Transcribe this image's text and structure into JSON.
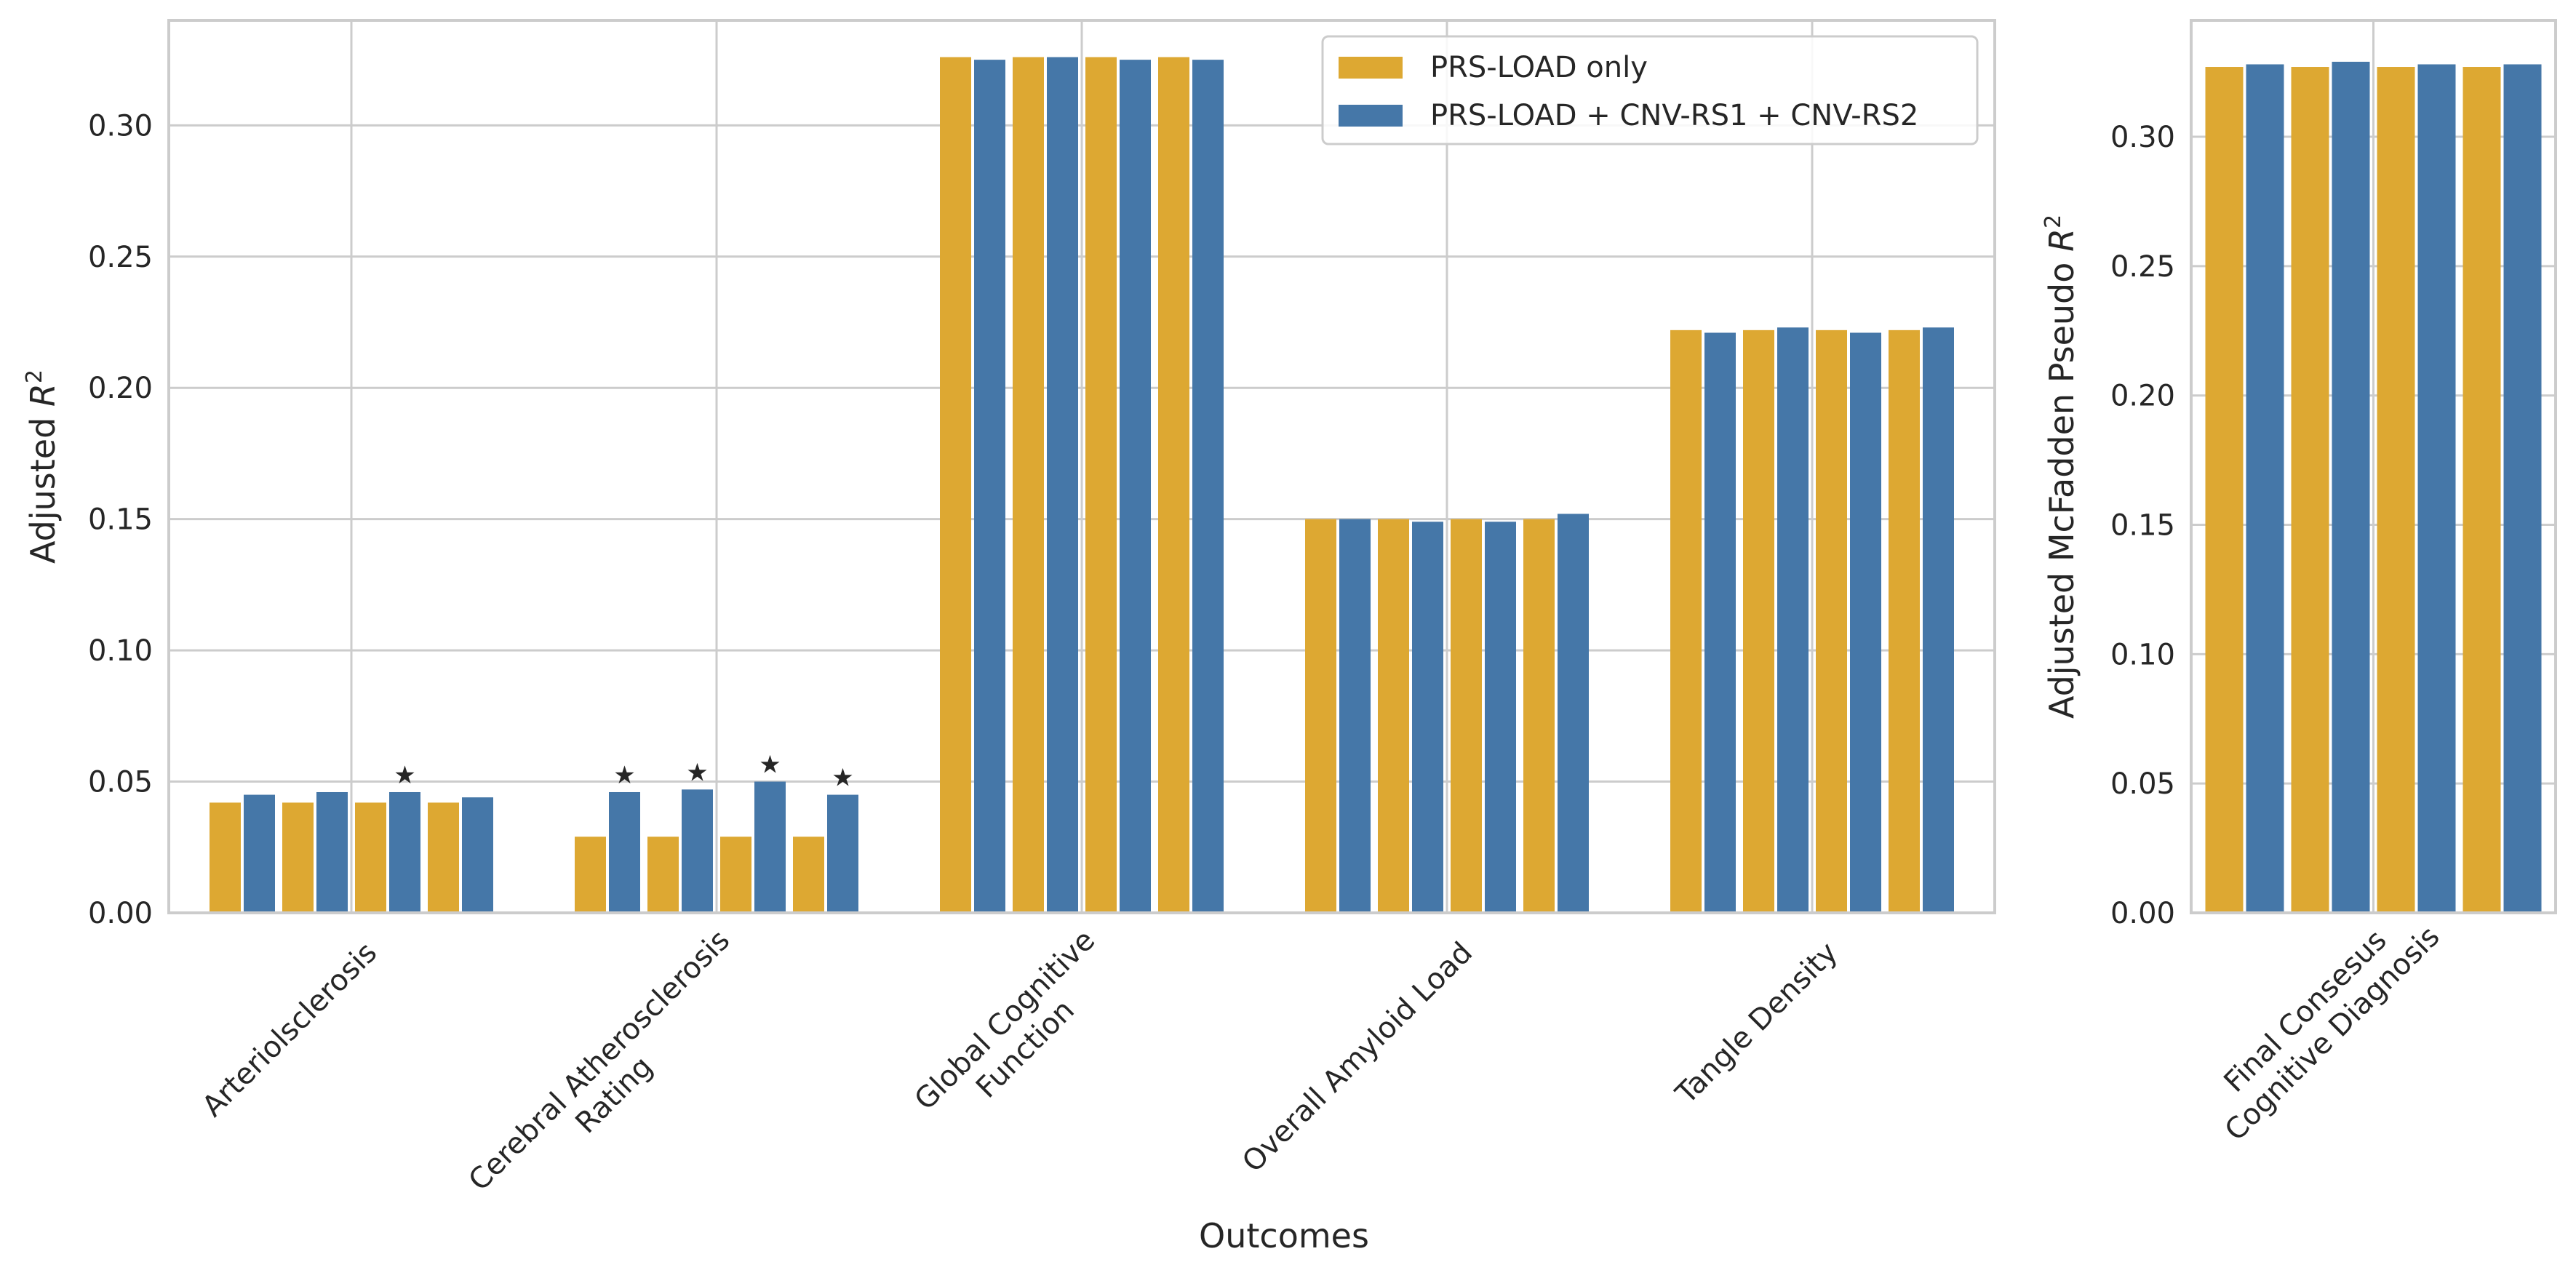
{
  "chart_data": [
    {
      "type": "bar",
      "xlabel": "Outcomes",
      "ylabel": "Adjusted R²",
      "ylim": [
        0,
        0.34
      ],
      "yticks": [
        "0.00",
        "0.05",
        "0.10",
        "0.15",
        "0.20",
        "0.25",
        "0.30"
      ],
      "grid": true,
      "legend_position": "top-right",
      "categories": [
        "Arteriolsclerosis",
        "Cerebral Atherosclerosis\nRating",
        "Global Cognitive\nFunction",
        "Overall Amyloid Load",
        "Tangle Density"
      ],
      "bars_per_series_per_category": 4,
      "series": [
        {
          "name": "PRS-LOAD only",
          "color": "#DDA832",
          "values": [
            [
              0.042,
              0.042,
              0.042,
              0.042
            ],
            [
              0.029,
              0.029,
              0.029,
              0.029
            ],
            [
              0.326,
              0.326,
              0.326,
              0.326
            ],
            [
              0.15,
              0.15,
              0.15,
              0.15
            ],
            [
              0.222,
              0.222,
              0.222,
              0.222
            ]
          ]
        },
        {
          "name": "PRS-LOAD + CNV-RS1 + CNV-RS2",
          "color": "#4577A8",
          "values": [
            [
              0.045,
              0.046,
              0.046,
              0.044
            ],
            [
              0.046,
              0.047,
              0.05,
              0.045
            ],
            [
              0.325,
              0.326,
              0.325,
              0.325
            ],
            [
              0.15,
              0.149,
              0.149,
              0.152
            ],
            [
              0.221,
              0.223,
              0.221,
              0.223
            ]
          ]
        }
      ],
      "annotations": {
        "symbol": "★",
        "marks": [
          {
            "category": 0,
            "pair": 2
          },
          {
            "category": 1,
            "pair": 0
          },
          {
            "category": 1,
            "pair": 1
          },
          {
            "category": 1,
            "pair": 2
          },
          {
            "category": 1,
            "pair": 3
          }
        ]
      }
    },
    {
      "type": "bar",
      "xlabel": "",
      "ylabel": "Adjusted McFadden Pseudo R²",
      "ylim": [
        0,
        0.345
      ],
      "yticks": [
        "0.00",
        "0.05",
        "0.10",
        "0.15",
        "0.20",
        "0.25",
        "0.30"
      ],
      "grid": true,
      "categories": [
        "Final Consesus\nCognitive Diagnosis"
      ],
      "bars_per_series_per_category": 4,
      "series": [
        {
          "name": "PRS-LOAD only",
          "color": "#DDA832",
          "values": [
            [
              0.327,
              0.327,
              0.327,
              0.327
            ]
          ]
        },
        {
          "name": "PRS-LOAD + CNV-RS1 + CNV-RS2",
          "color": "#4577A8",
          "values": [
            [
              0.328,
              0.329,
              0.328,
              0.328
            ]
          ]
        }
      ]
    }
  ]
}
